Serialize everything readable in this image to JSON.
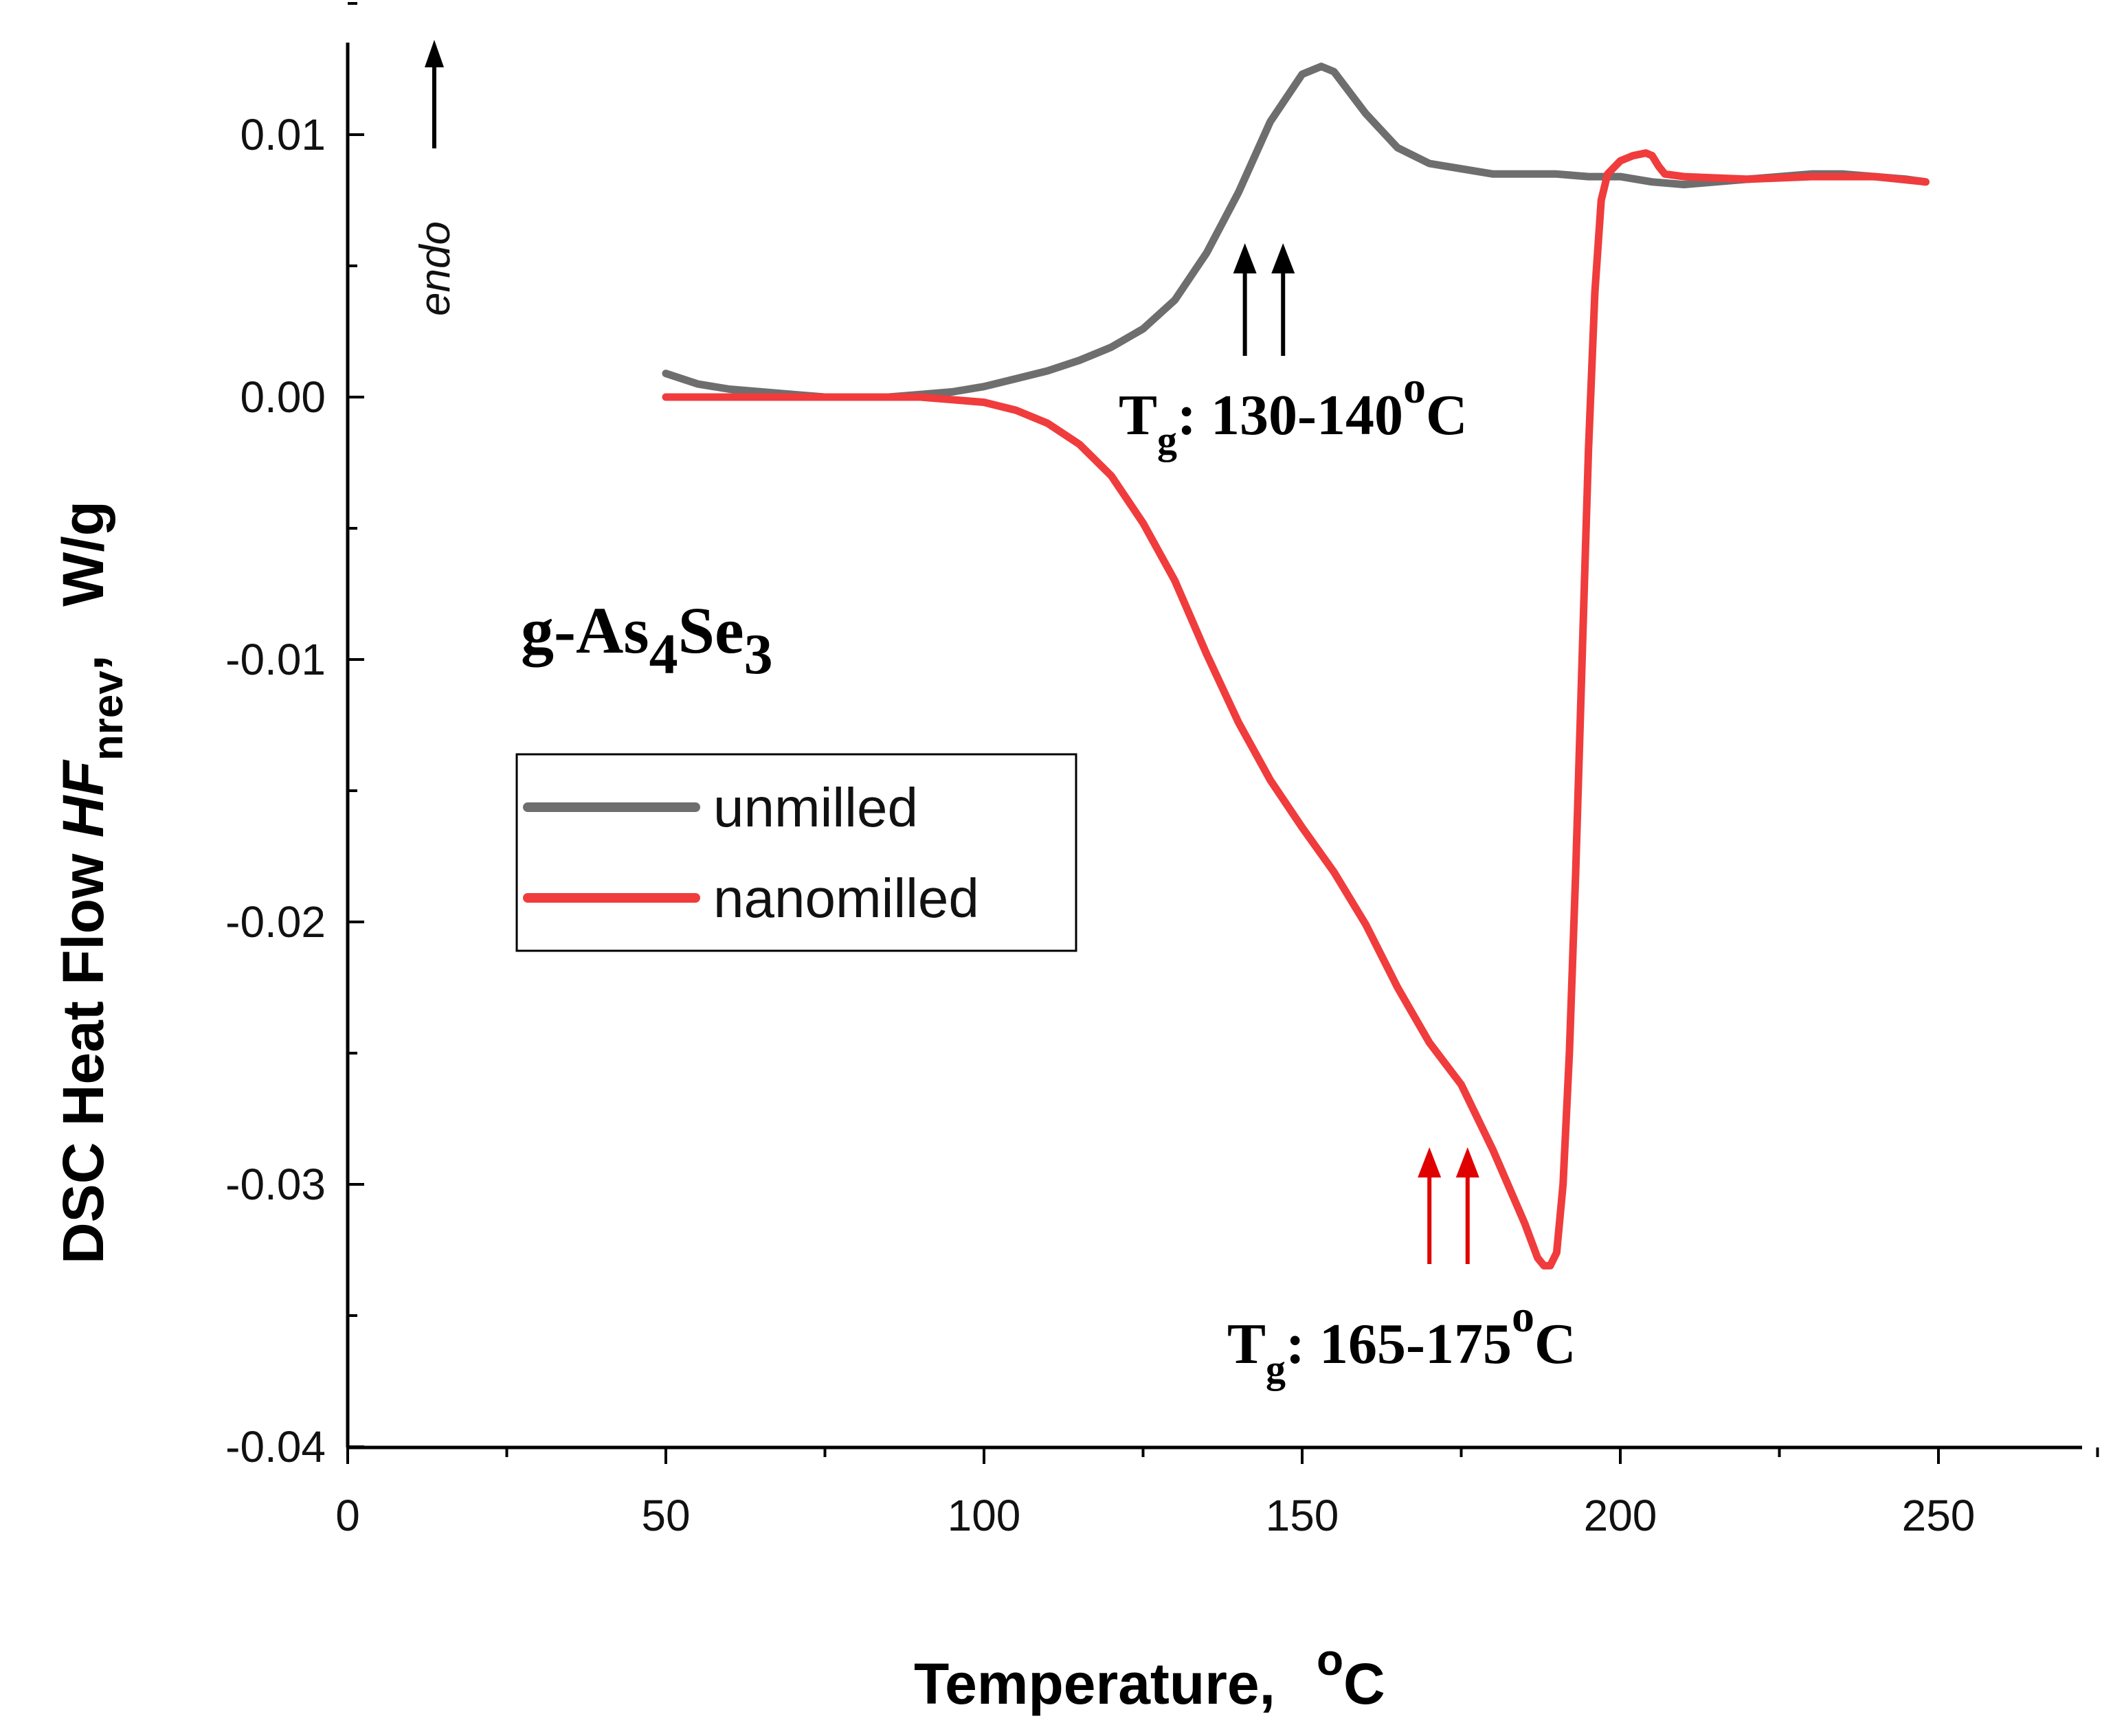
{
  "chart_data": {
    "type": "line",
    "xlabel": "Temperature,",
    "xlabel_unit": "C",
    "xlabel_unit_sup": "o",
    "ylabel": "DSC Heat Flow ",
    "ylabel_italic": "HF",
    "ylabel_sub": "nrev",
    "ylabel_comma": ",",
    "ylabel_unit": "W/g",
    "xlim": [
      0,
      270
    ],
    "ylim": [
      -0.04,
      0.0135
    ],
    "x_ticks": [
      0,
      50,
      100,
      150,
      200,
      250
    ],
    "x_tick_labels": [
      "0",
      "50",
      "100",
      "150",
      "200",
      "250"
    ],
    "y_ticks": [
      -0.04,
      -0.03,
      -0.02,
      -0.01,
      0.0,
      0.01
    ],
    "y_tick_labels": [
      "-0.04",
      "-0.03",
      "-0.02",
      "-0.01",
      "0.00",
      "0.01"
    ],
    "grid": false,
    "legend_position": "center-left",
    "series": [
      {
        "name": "unmilled",
        "color": "#6e6e6e",
        "x": [
          50,
          55,
          60,
          65,
          70,
          75,
          80,
          85,
          90,
          95,
          100,
          105,
          110,
          115,
          120,
          125,
          130,
          135,
          140,
          145,
          150,
          153,
          155,
          160,
          165,
          170,
          175,
          180,
          185,
          190,
          195,
          200,
          205,
          210,
          215,
          220,
          225,
          230,
          235,
          240,
          245,
          248
        ],
        "values": [
          0.0009,
          0.0005,
          0.0003,
          0.0002,
          0.0001,
          0.0,
          0.0,
          0.0,
          0.0001,
          0.0002,
          0.0004,
          0.0007,
          0.001,
          0.0014,
          0.0019,
          0.0026,
          0.0037,
          0.0055,
          0.0078,
          0.0105,
          0.0123,
          0.0126,
          0.0124,
          0.0108,
          0.0095,
          0.0089,
          0.0087,
          0.0085,
          0.0085,
          0.0085,
          0.0084,
          0.0084,
          0.0082,
          0.0081,
          0.0082,
          0.0083,
          0.0084,
          0.0085,
          0.0085,
          0.0084,
          0.0083,
          0.0082
        ]
      },
      {
        "name": "nanomilled",
        "color": "#f03c3c",
        "x": [
          50,
          60,
          70,
          80,
          90,
          95,
          100,
          105,
          110,
          115,
          120,
          125,
          130,
          135,
          140,
          145,
          150,
          155,
          160,
          165,
          170,
          175,
          180,
          185,
          187,
          188,
          189,
          190,
          191,
          192,
          193,
          194,
          195,
          196,
          197,
          198,
          200,
          202,
          204,
          205,
          206,
          207,
          210,
          220,
          230,
          240,
          248
        ],
        "values": [
          0.0,
          0.0,
          0.0,
          0.0,
          0.0,
          -0.0001,
          -0.0002,
          -0.0005,
          -0.001,
          -0.0018,
          -0.003,
          -0.0048,
          -0.007,
          -0.0098,
          -0.0124,
          -0.0146,
          -0.0164,
          -0.0181,
          -0.0201,
          -0.0225,
          -0.0246,
          -0.0262,
          -0.0287,
          -0.0315,
          -0.0328,
          -0.0331,
          -0.0331,
          -0.0326,
          -0.03,
          -0.025,
          -0.018,
          -0.01,
          -0.002,
          0.004,
          0.0075,
          0.0085,
          0.009,
          0.0092,
          0.0093,
          0.0092,
          0.0088,
          0.0085,
          0.0084,
          0.0083,
          0.0084,
          0.0084,
          0.0082
        ]
      }
    ],
    "annotations": {
      "unmilled_tg": {
        "prefix": "T",
        "sub": "g",
        "text": ": 130-140",
        "sup": "o",
        "unit": "C",
        "arrows_x": [
          141,
          147
        ],
        "color": "#000000"
      },
      "nanomilled_tg": {
        "prefix": "T",
        "sub": "g",
        "text": ": 165-175",
        "sup": "o",
        "unit": "C",
        "arrows_x": [
          170,
          176
        ],
        "color": "#e00000"
      },
      "endo": "endo",
      "sample": {
        "prefix": "g-As",
        "sub1": "4",
        "mid": "Se",
        "sub2": "3"
      }
    }
  }
}
